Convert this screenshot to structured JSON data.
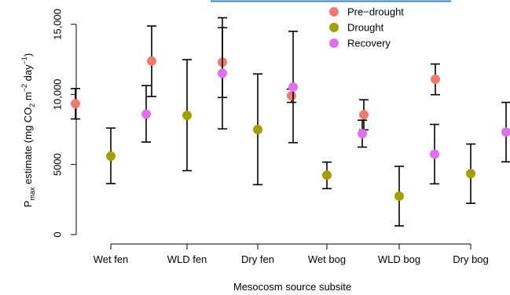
{
  "chart_data": {
    "type": "scatter",
    "categories": [
      "Wet fen",
      "WLD fen",
      "Dry fen",
      "Wet bog",
      "WLD bog",
      "Dry bog"
    ],
    "ylim": [
      0,
      15000
    ],
    "yticks": [
      0,
      5000,
      10000,
      15000
    ],
    "ytick_labels": [
      "0",
      "5000",
      "10,000",
      "15,000"
    ],
    "ylabel": {
      "main": "P",
      "subscript": "max",
      "text": " estimate (mg CO",
      "sub2": "2",
      "text2": " m",
      "sup1": "−2",
      "text3": " day",
      "sup2": "−1",
      "text4": ")"
    },
    "xlabel": "Mesocosm source subsite",
    "legend_position": "top-right",
    "series": [
      {
        "name": "Pre−drought",
        "color": "#F07A72",
        "values": [
          9330,
          12380,
          12300,
          9900,
          8550,
          11080
        ],
        "err_low": [
          8250,
          9850,
          9780,
          9430,
          7470,
          9980
        ],
        "err_high": [
          10420,
          14880,
          14760,
          10380,
          9620,
          12170
        ]
      },
      {
        "name": "Drought",
        "color": "#A2A000",
        "values": [
          5600,
          8500,
          7490,
          4240,
          2740,
          4350
        ],
        "err_low": [
          3640,
          4560,
          3560,
          3280,
          620,
          2230
        ],
        "err_high": [
          7600,
          12480,
          11460,
          5170,
          4870,
          6460
        ]
      },
      {
        "name": "Recovery",
        "color": "#E070F0",
        "values": [
          8600,
          11510,
          10520,
          7200,
          5740,
          7320
        ],
        "err_low": [
          6600,
          7540,
          6560,
          6240,
          3620,
          5190
        ],
        "err_high": [
          10630,
          15470,
          14500,
          8160,
          7860,
          9430
        ]
      }
    ]
  }
}
